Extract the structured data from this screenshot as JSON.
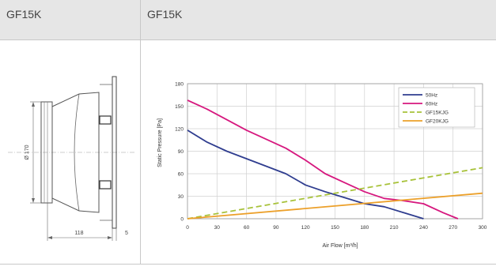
{
  "header": {
    "left_title": "GF15K",
    "right_title": "GF15K"
  },
  "drawing": {
    "diameter_label": "Ø 170",
    "depth_label": "118",
    "flange_label": "5"
  },
  "chart_data": {
    "type": "line",
    "title": "",
    "xlabel": "Air Flow [m³/h]",
    "ylabel": "Static Pressure [Pa]",
    "xlim": [
      0,
      300
    ],
    "ylim": [
      0,
      180
    ],
    "x_ticks": [
      "0",
      "30",
      "60",
      "90",
      "120",
      "150",
      "180",
      "210",
      "240",
      "270",
      "300"
    ],
    "y_ticks": [
      "0",
      "30",
      "60",
      "90",
      "120",
      "150",
      "180"
    ],
    "grid": true,
    "legend_position": "top-right",
    "series": [
      {
        "name": "50Hz",
        "color": "#2f3d8f",
        "dash": "solid",
        "x": [
          0,
          20,
          40,
          60,
          80,
          100,
          120,
          140,
          160,
          180,
          200,
          220,
          240
        ],
        "y": [
          118,
          102,
          90,
          80,
          70,
          60,
          45,
          36,
          28,
          20,
          16,
          8,
          0
        ]
      },
      {
        "name": "60Hz",
        "color": "#d6177e",
        "dash": "solid",
        "x": [
          0,
          20,
          40,
          60,
          80,
          100,
          120,
          140,
          160,
          180,
          200,
          220,
          240,
          260,
          275
        ],
        "y": [
          158,
          146,
          132,
          118,
          106,
          94,
          78,
          60,
          48,
          36,
          27,
          24,
          20,
          8,
          0
        ]
      },
      {
        "name": "GF15KJG",
        "color": "#a8c23a",
        "dash": "dashed",
        "x": [
          0,
          300
        ],
        "y": [
          0,
          68
        ]
      },
      {
        "name": "GF20KJG",
        "color": "#eca02a",
        "dash": "solid",
        "x": [
          0,
          300
        ],
        "y": [
          0,
          34
        ]
      }
    ]
  }
}
